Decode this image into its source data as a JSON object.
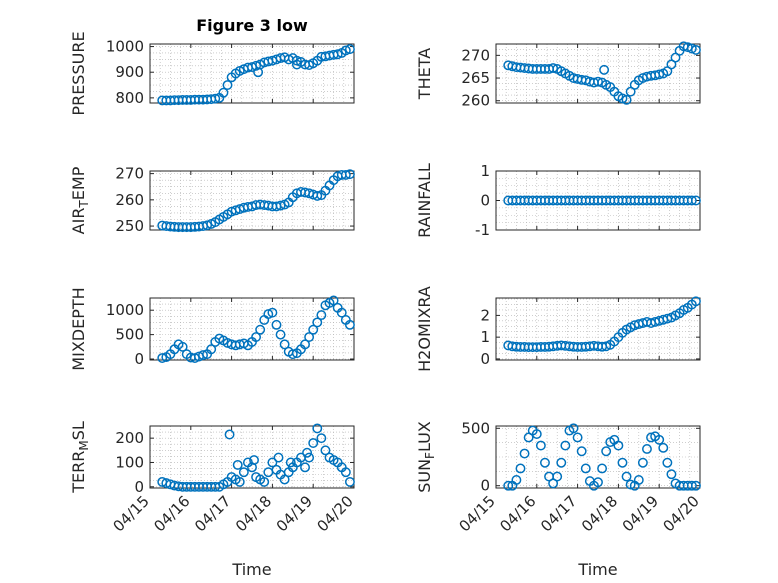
{
  "figure": {
    "title": "Figure 3 low",
    "xlabel": "Time",
    "xticks": [
      "04/15",
      "04/16",
      "04/17",
      "04/18",
      "04/19",
      "04/20"
    ]
  },
  "colors": {
    "marker": "#0072BD",
    "axis": "#262626",
    "grid": "#b0b0b0"
  },
  "chart_data": [
    {
      "type": "scatter",
      "title": "Figure 3 low",
      "ylabel": "PRESSURE",
      "xlabel": "",
      "xlim": [
        0,
        5
      ],
      "ylim": [
        780,
        1010
      ],
      "yticks": [
        800,
        900,
        1000
      ],
      "grid": true,
      "x": [
        0.3,
        0.4,
        0.5,
        0.6,
        0.7,
        0.8,
        0.9,
        1.0,
        1.1,
        1.2,
        1.3,
        1.4,
        1.5,
        1.6,
        1.7,
        1.8,
        1.9,
        2.0,
        2.1,
        2.2,
        2.3,
        2.4,
        2.5,
        2.6,
        2.7,
        2.8,
        2.9,
        3.0,
        3.1,
        3.2,
        3.3,
        3.4,
        3.5,
        3.6,
        3.7,
        3.8,
        3.9,
        4.0,
        4.1,
        4.2,
        4.3,
        4.4,
        4.5,
        4.6,
        4.7,
        4.8,
        4.9,
        2.65,
        3.6
      ],
      "y": [
        790,
        790,
        790,
        791,
        791,
        792,
        792,
        792,
        793,
        793,
        793,
        794,
        795,
        797,
        800,
        820,
        850,
        880,
        895,
        905,
        912,
        918,
        920,
        925,
        930,
        938,
        942,
        945,
        950,
        955,
        958,
        950,
        955,
        945,
        940,
        930,
        928,
        935,
        945,
        960,
        962,
        965,
        968,
        970,
        975,
        985,
        990,
        900,
        930
      ]
    },
    {
      "type": "scatter",
      "title": "",
      "ylabel": "THETA",
      "xlabel": "",
      "xlim": [
        0,
        5
      ],
      "ylim": [
        259.5,
        272.5
      ],
      "yticks": [
        260,
        265,
        270
      ],
      "grid": true,
      "x": [
        0.3,
        0.4,
        0.5,
        0.6,
        0.7,
        0.8,
        0.9,
        1.0,
        1.1,
        1.2,
        1.3,
        1.4,
        1.5,
        1.6,
        1.7,
        1.8,
        1.9,
        2.0,
        2.1,
        2.2,
        2.3,
        2.4,
        2.5,
        2.6,
        2.7,
        2.8,
        2.9,
        3.0,
        3.1,
        3.2,
        3.3,
        3.4,
        3.5,
        3.6,
        3.7,
        3.8,
        3.9,
        4.0,
        4.1,
        4.2,
        4.3,
        4.4,
        4.5,
        4.6,
        4.7,
        4.8,
        4.9,
        2.65
      ],
      "y": [
        267.8,
        267.6,
        267.4,
        267.3,
        267.2,
        267.1,
        267.0,
        267.0,
        267.0,
        267.0,
        267.0,
        267.2,
        267.0,
        266.5,
        266.0,
        265.5,
        265.0,
        264.8,
        264.6,
        264.5,
        264.2,
        264.0,
        264.2,
        264.0,
        263.5,
        263.0,
        262.0,
        261.0,
        260.5,
        260.2,
        262.0,
        263.5,
        264.5,
        265.0,
        265.3,
        265.5,
        265.6,
        265.8,
        266.0,
        266.5,
        268.0,
        269.5,
        271.0,
        272.0,
        271.8,
        271.5,
        271.2,
        266.8
      ]
    },
    {
      "type": "scatter",
      "title": "",
      "ylabel": "AIR_TEMP",
      "xlabel": "",
      "xlim": [
        0,
        5
      ],
      "ylim": [
        248.5,
        271
      ],
      "yticks": [
        250,
        260,
        270
      ],
      "grid": true,
      "x": [
        0.3,
        0.4,
        0.5,
        0.6,
        0.7,
        0.8,
        0.9,
        1.0,
        1.1,
        1.2,
        1.3,
        1.4,
        1.5,
        1.6,
        1.7,
        1.8,
        1.9,
        2.0,
        2.1,
        2.2,
        2.3,
        2.4,
        2.5,
        2.6,
        2.7,
        2.8,
        2.9,
        3.0,
        3.1,
        3.2,
        3.3,
        3.4,
        3.5,
        3.6,
        3.7,
        3.8,
        3.9,
        4.0,
        4.1,
        4.2,
        4.3,
        4.4,
        4.5,
        4.6,
        4.7,
        4.8,
        4.9
      ],
      "y": [
        250.2,
        250.0,
        249.8,
        249.7,
        249.6,
        249.6,
        249.6,
        249.6,
        249.7,
        249.8,
        250.0,
        250.3,
        250.8,
        251.5,
        252.5,
        253.5,
        254.5,
        255.5,
        256.0,
        256.5,
        257.0,
        257.3,
        257.5,
        258.0,
        258.2,
        258.0,
        257.8,
        257.5,
        257.5,
        257.8,
        258.2,
        259.0,
        261.0,
        262.5,
        263.0,
        262.8,
        262.5,
        262.0,
        261.5,
        261.8,
        263.5,
        265.5,
        267.5,
        269.0,
        269.5,
        269.5,
        269.8
      ]
    },
    {
      "type": "scatter",
      "title": "",
      "ylabel": "RAINFALL",
      "xlabel": "",
      "xlim": [
        0,
        5
      ],
      "ylim": [
        -1,
        1
      ],
      "yticks": [
        -1,
        0,
        1
      ],
      "grid": true,
      "x": [
        0.3,
        0.4,
        0.5,
        0.6,
        0.7,
        0.8,
        0.9,
        1.0,
        1.1,
        1.2,
        1.3,
        1.4,
        1.5,
        1.6,
        1.7,
        1.8,
        1.9,
        2.0,
        2.1,
        2.2,
        2.3,
        2.4,
        2.5,
        2.6,
        2.7,
        2.8,
        2.9,
        3.0,
        3.1,
        3.2,
        3.3,
        3.4,
        3.5,
        3.6,
        3.7,
        3.8,
        3.9,
        4.0,
        4.1,
        4.2,
        4.3,
        4.4,
        4.5,
        4.6,
        4.7,
        4.8,
        4.9
      ],
      "y": [
        0,
        0,
        0,
        0,
        0,
        0,
        0,
        0,
        0,
        0,
        0,
        0,
        0,
        0,
        0,
        0,
        0,
        0,
        0,
        0,
        0,
        0,
        0,
        0,
        0,
        0,
        0,
        0,
        0,
        0,
        0,
        0,
        0,
        0,
        0,
        0,
        0,
        0,
        0,
        0,
        0,
        0,
        0,
        0,
        0,
        0,
        0
      ]
    },
    {
      "type": "scatter",
      "title": "",
      "ylabel": "MIXDEPTH",
      "xlabel": "",
      "xlim": [
        0,
        5
      ],
      "ylim": [
        -20,
        1250
      ],
      "yticks": [
        0,
        500,
        1000
      ],
      "grid": true,
      "x": [
        0.3,
        0.4,
        0.5,
        0.6,
        0.7,
        0.8,
        0.9,
        1.0,
        1.1,
        1.2,
        1.3,
        1.4,
        1.5,
        1.6,
        1.7,
        1.8,
        1.9,
        2.0,
        2.1,
        2.2,
        2.3,
        2.4,
        2.5,
        2.6,
        2.7,
        2.8,
        2.9,
        3.0,
        3.1,
        3.2,
        3.3,
        3.4,
        3.5,
        3.6,
        3.7,
        3.8,
        3.9,
        4.0,
        4.1,
        4.2,
        4.3,
        4.4,
        4.5,
        4.6,
        4.7,
        4.8,
        4.9
      ],
      "y": [
        20,
        40,
        100,
        200,
        300,
        250,
        100,
        30,
        20,
        50,
        80,
        100,
        200,
        350,
        420,
        380,
        330,
        300,
        280,
        300,
        320,
        280,
        350,
        450,
        600,
        800,
        920,
        950,
        700,
        500,
        300,
        150,
        100,
        120,
        200,
        300,
        450,
        600,
        750,
        900,
        1100,
        1150,
        1200,
        1050,
        950,
        800,
        700
      ]
    },
    {
      "type": "scatter",
      "title": "",
      "ylabel": "H2OMIXRA",
      "xlabel": "",
      "xlim": [
        0,
        5
      ],
      "ylim": [
        -0.05,
        2.8
      ],
      "yticks": [
        0,
        1,
        2
      ],
      "grid": true,
      "x": [
        0.3,
        0.4,
        0.5,
        0.6,
        0.7,
        0.8,
        0.9,
        1.0,
        1.1,
        1.2,
        1.3,
        1.4,
        1.5,
        1.6,
        1.7,
        1.8,
        1.9,
        2.0,
        2.1,
        2.2,
        2.3,
        2.4,
        2.5,
        2.6,
        2.7,
        2.8,
        2.9,
        3.0,
        3.1,
        3.2,
        3.3,
        3.4,
        3.5,
        3.6,
        3.7,
        3.8,
        3.9,
        4.0,
        4.1,
        4.2,
        4.3,
        4.4,
        4.5,
        4.6,
        4.7,
        4.8,
        4.9
      ],
      "y": [
        0.62,
        0.58,
        0.56,
        0.55,
        0.55,
        0.54,
        0.54,
        0.54,
        0.55,
        0.55,
        0.56,
        0.58,
        0.6,
        0.62,
        0.6,
        0.58,
        0.56,
        0.55,
        0.55,
        0.56,
        0.58,
        0.6,
        0.58,
        0.56,
        0.58,
        0.65,
        0.8,
        1.0,
        1.2,
        1.35,
        1.45,
        1.55,
        1.6,
        1.65,
        1.7,
        1.65,
        1.7,
        1.75,
        1.8,
        1.85,
        1.9,
        2.0,
        2.1,
        2.25,
        2.35,
        2.5,
        2.65
      ]
    },
    {
      "type": "scatter",
      "title": "",
      "ylabel": "TERR_MSL",
      "xlabel": "Time",
      "xlim": [
        0,
        5
      ],
      "ylim": [
        -5,
        250
      ],
      "yticks": [
        0,
        100,
        200
      ],
      "grid": true,
      "x": [
        0.3,
        0.4,
        0.5,
        0.6,
        0.7,
        0.8,
        0.9,
        1.0,
        1.1,
        1.2,
        1.3,
        1.4,
        1.5,
        1.6,
        1.7,
        1.8,
        1.9,
        2.0,
        2.1,
        2.2,
        2.3,
        2.4,
        2.5,
        2.6,
        2.7,
        2.8,
        2.9,
        3.0,
        3.1,
        3.2,
        3.3,
        3.4,
        3.5,
        3.6,
        3.7,
        3.8,
        3.9,
        4.0,
        4.1,
        4.2,
        4.3,
        4.4,
        4.5,
        4.6,
        4.7,
        4.8,
        4.9,
        1.95,
        2.15,
        2.55,
        3.15,
        3.45,
        3.85
      ],
      "y": [
        20,
        15,
        10,
        5,
        2,
        0,
        0,
        0,
        0,
        0,
        0,
        0,
        0,
        0,
        0,
        10,
        20,
        40,
        30,
        20,
        60,
        100,
        80,
        40,
        30,
        20,
        60,
        100,
        70,
        50,
        30,
        60,
        80,
        100,
        120,
        80,
        120,
        180,
        240,
        200,
        150,
        120,
        110,
        100,
        80,
        60,
        20,
        215,
        90,
        110,
        120,
        100,
        140
      ]
    },
    {
      "type": "scatter",
      "title": "",
      "ylabel": "SUN_FLUX",
      "xlabel": "Time",
      "xlim": [
        0,
        5
      ],
      "ylim": [
        -20,
        520
      ],
      "yticks": [
        0,
        500
      ],
      "grid": true,
      "x": [
        0.3,
        0.4,
        0.5,
        0.6,
        0.7,
        0.8,
        0.9,
        1.0,
        1.1,
        1.2,
        1.3,
        1.4,
        1.5,
        1.6,
        1.7,
        1.8,
        1.9,
        2.0,
        2.1,
        2.2,
        2.3,
        2.4,
        2.5,
        2.6,
        2.7,
        2.8,
        2.9,
        3.0,
        3.1,
        3.2,
        3.3,
        3.4,
        3.5,
        3.6,
        3.7,
        3.8,
        3.9,
        4.0,
        4.1,
        4.2,
        4.3,
        4.4,
        4.5,
        4.6,
        4.7,
        4.8,
        4.9
      ],
      "y": [
        0,
        0,
        50,
        150,
        280,
        420,
        480,
        450,
        350,
        200,
        80,
        20,
        80,
        200,
        350,
        480,
        500,
        420,
        300,
        150,
        40,
        0,
        30,
        150,
        300,
        380,
        400,
        350,
        200,
        80,
        10,
        0,
        50,
        200,
        320,
        420,
        430,
        400,
        330,
        200,
        100,
        20,
        0,
        0,
        0,
        0,
        0
      ]
    }
  ]
}
